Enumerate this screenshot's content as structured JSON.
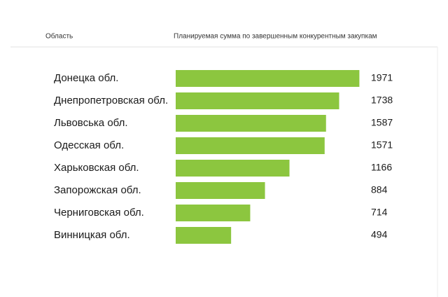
{
  "chart_data": {
    "type": "bar",
    "orientation": "horizontal",
    "category_header": "Область",
    "value_header": "Планируемая сумма по завершенным конкурентным закупкам",
    "categories": [
      "Донецка обл.",
      "Днепропетровская обл.",
      "Львовська обл.",
      "Одесская обл.",
      "Харьковская обл.",
      "Запорожская обл.",
      "Черниговская обл.",
      "Винницкая обл."
    ],
    "values": [
      1971,
      1738,
      1587,
      1571,
      1166,
      884,
      714,
      494
    ],
    "color": "#8cc63f",
    "xlim": [
      -144,
      2000
    ]
  }
}
